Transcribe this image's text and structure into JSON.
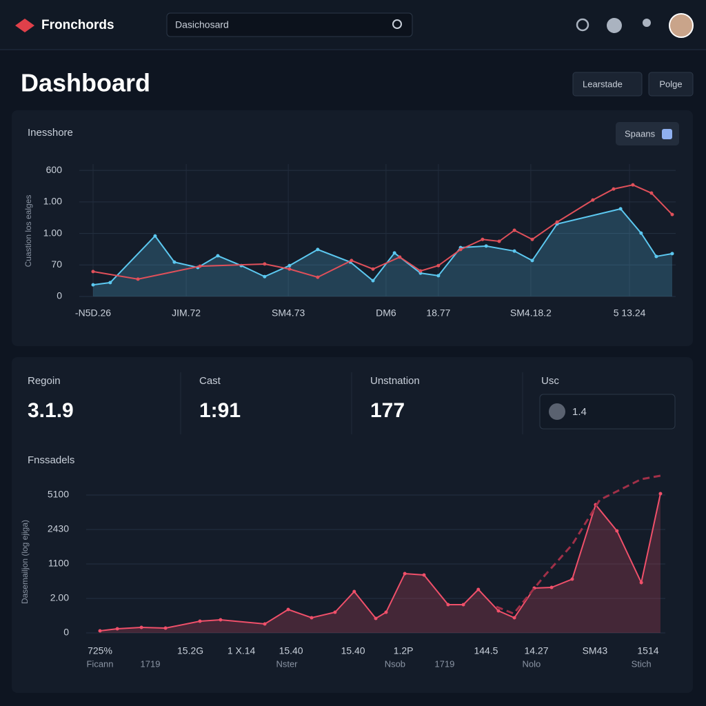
{
  "header": {
    "brand": "Fronchords",
    "search": "Dasichosard"
  },
  "page_title": "Dashboard",
  "buttons": [
    "Learstade",
    "Polge"
  ],
  "charts": [
    {
      "type": "line",
      "title": "Inesshore",
      "toggle": "Spaans",
      "y_label": "Cuastion los ealges",
      "grid": "xy",
      "xlim": [
        0,
        24
      ],
      "ylim": [
        0,
        4.2
      ],
      "xticks": [
        {
          "value": 0,
          "label": "-N5D.26"
        },
        {
          "value": 3.86,
          "label": "JIM.72"
        },
        {
          "value": 8.09,
          "label": "SM4.73"
        },
        {
          "value": 12.14,
          "label": "DM6"
        },
        {
          "value": 14.31,
          "label": "18.77"
        },
        {
          "value": 18.14,
          "label": "SM4.18.2"
        },
        {
          "value": 22.23,
          "label": "5 13.24"
        }
      ],
      "yticks": [
        0,
        {
          "value": 1,
          "label": "70"
        },
        {
          "value": 2,
          "label": "1.00"
        },
        {
          "value": 3,
          "label": "1.00"
        },
        {
          "value": 4,
          "label": "600"
        }
      ],
      "series": [
        {
          "color": "#5cc8f0",
          "area": true,
          "dash": false,
          "x": [
            0,
            0.71,
            2.57,
            3.37,
            4.34,
            5.17,
            6.14,
            7.11,
            8.14,
            9.31,
            10.66,
            11.6,
            12.49,
            13.57,
            14.31,
            15.23,
            16.29,
            17.46,
            18.2,
            19.23,
            21.86,
            22.71,
            23.34,
            24
          ],
          "values": [
            0.37,
            0.44,
            1.92,
            1.09,
            0.92,
            1.29,
            0.98,
            0.63,
            0.98,
            1.49,
            1.09,
            0.5,
            1.38,
            0.74,
            0.66,
            1.55,
            1.6,
            1.44,
            1.14,
            2.3,
            2.78,
            2.01,
            1.27,
            1.36
          ]
        },
        {
          "color": "#e0505a",
          "area": false,
          "dash": false,
          "x": [
            0,
            1.86,
            4.43,
            7.11,
            8.14,
            9.31,
            10.71,
            11.6,
            12.71,
            13.57,
            14.31,
            15.23,
            16.14,
            16.83,
            17.46,
            18.2,
            19.23,
            20.71,
            21.57,
            22.37,
            23.14,
            24
          ],
          "values": [
            0.79,
            0.55,
            0.96,
            1.03,
            0.87,
            0.61,
            1.14,
            0.87,
            1.25,
            0.81,
            0.98,
            1.49,
            1.81,
            1.75,
            2.1,
            1.81,
            2.36,
            3.06,
            3.41,
            3.54,
            3.28,
            2.6
          ]
        }
      ]
    },
    {
      "type": "line",
      "title": "Fnssadels",
      "y_label": "Dasemailjon (log ejiga)",
      "grid": "y",
      "xlim": [
        0,
        24
      ],
      "ylim": [
        0,
        4.6
      ],
      "xticks": [
        {
          "value": 0,
          "label": "725%"
        },
        {
          "value": 3.86,
          "label": "15.2G"
        },
        {
          "value": 6.04,
          "label": "1 X.14"
        },
        {
          "value": 8.16,
          "label": "15.40"
        },
        {
          "value": 10.81,
          "label": "15.40"
        },
        {
          "value": 12.96,
          "label": "1.2P"
        },
        {
          "value": 16.49,
          "label": "144.5"
        },
        {
          "value": 18.64,
          "label": "14.27"
        },
        {
          "value": 21.14,
          "label": "SM43"
        },
        {
          "value": 23.41,
          "label": "1514"
        }
      ],
      "x_sublabels": [
        {
          "value": 0,
          "label": "Ficann"
        },
        {
          "value": 2.15,
          "label": "1719"
        },
        {
          "value": 7.98,
          "label": "Nster"
        },
        {
          "value": 12.6,
          "label": "Nsob"
        },
        {
          "value": 14.72,
          "label": "1719"
        },
        {
          "value": 18.43,
          "label": "Nolo"
        },
        {
          "value": 23.12,
          "label": "Stich"
        }
      ],
      "yticks": [
        0,
        {
          "value": 1,
          "label": "2.00"
        },
        {
          "value": 2,
          "label": "1100"
        },
        {
          "value": 3,
          "label": "2430"
        },
        {
          "value": 4,
          "label": "5100"
        }
      ],
      "series": [
        {
          "color": "#f0506a",
          "area": true,
          "dash": false,
          "x": [
            0,
            0.74,
            1.77,
            2.8,
            4.27,
            5.15,
            7.04,
            8.04,
            9.04,
            10.04,
            10.86,
            11.78,
            12.22,
            13.02,
            13.84,
            14.87,
            15.52,
            16.16,
            17.02,
            17.7,
            18.55,
            19.29,
            20.17,
            21.17,
            22.08,
            23.12,
            23.94
          ],
          "values": [
            0.06,
            0.12,
            0.16,
            0.14,
            0.34,
            0.38,
            0.26,
            0.68,
            0.44,
            0.6,
            1.2,
            0.42,
            0.6,
            1.72,
            1.68,
            0.82,
            0.82,
            1.26,
            0.64,
            0.44,
            1.3,
            1.32,
            1.56,
            3.72,
            2.96,
            1.46,
            4.04
          ]
        },
        {
          "color": "#a03048",
          "area": false,
          "dash": true,
          "x": [
            16.93,
            17.67,
            18.99,
            20.17,
            21.35,
            23.12,
            23.94
          ],
          "values": [
            0.76,
            0.56,
            1.66,
            2.56,
            3.86,
            4.46,
            4.56
          ]
        }
      ]
    }
  ],
  "stats": [
    {
      "label": "Regoin",
      "value": "3.1.9"
    },
    {
      "label": "Cast",
      "value": "1:91"
    },
    {
      "label": "Unstnation",
      "value": "177"
    },
    {
      "label": "Usc",
      "value": "1.4"
    }
  ]
}
